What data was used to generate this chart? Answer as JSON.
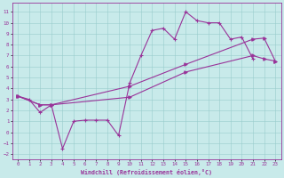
{
  "xlabel": "Windchill (Refroidissement éolien,°C)",
  "bg_color": "#c8eaea",
  "grid_color": "#99cccc",
  "line_color": "#993399",
  "xlim": [
    -0.5,
    23.5
  ],
  "ylim": [
    -2.5,
    11.8
  ],
  "xticks": [
    0,
    1,
    2,
    3,
    4,
    5,
    6,
    7,
    8,
    9,
    10,
    11,
    12,
    13,
    14,
    15,
    16,
    17,
    18,
    19,
    20,
    21,
    22,
    23
  ],
  "yticks": [
    -2,
    -1,
    0,
    1,
    2,
    3,
    4,
    5,
    6,
    7,
    8,
    9,
    10,
    11
  ],
  "line1_x": [
    0,
    1,
    2,
    3,
    4,
    5,
    6,
    7,
    8,
    9,
    10,
    11,
    12,
    13,
    14,
    15,
    16,
    17,
    18,
    19,
    20,
    21
  ],
  "line1_y": [
    3.3,
    3.0,
    1.8,
    2.5,
    -1.5,
    1.0,
    1.1,
    1.1,
    1.1,
    -0.3,
    4.5,
    7.0,
    9.3,
    9.5,
    8.5,
    11.0,
    10.2,
    10.0,
    10.0,
    8.5,
    8.7,
    6.7
  ],
  "line2_x": [
    0,
    2,
    3,
    10,
    15,
    21,
    22,
    23
  ],
  "line2_y": [
    3.3,
    2.5,
    2.5,
    3.2,
    5.5,
    7.0,
    6.7,
    6.5
  ],
  "line3_x": [
    0,
    2,
    3,
    10,
    15,
    21,
    22,
    23
  ],
  "line3_y": [
    3.3,
    2.5,
    2.5,
    4.2,
    6.2,
    8.5,
    8.6,
    6.5
  ]
}
